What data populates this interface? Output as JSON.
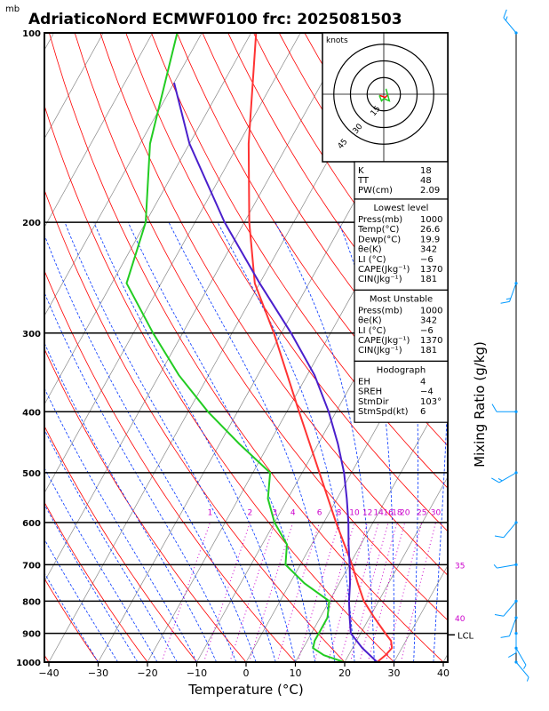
{
  "header": {
    "unit": "mb",
    "title": "AdriaticoNord ECMWF0100 frc: 2025081503"
  },
  "hodograph": {
    "unit": "knots",
    "ring_labels": [
      "15",
      "30",
      "45"
    ]
  },
  "indices": {
    "rows": [
      {
        "label": "K",
        "value": "18"
      },
      {
        "label": "TT",
        "value": "48"
      },
      {
        "label": "PW(cm)",
        "value": "2.09"
      }
    ]
  },
  "lowest_level": {
    "title": "Lowest level",
    "rows": [
      {
        "label": "Press(mb)",
        "value": "1000"
      },
      {
        "label": "Temp(°C)",
        "value": "26.6"
      },
      {
        "label": "Dewp(°C)",
        "value": "19.9"
      },
      {
        "label": "θe(K)",
        "value": "342"
      },
      {
        "label": "LI (°C)",
        "value": "−6"
      },
      {
        "label": "CAPE(Jkg⁻¹)",
        "value": "1370"
      },
      {
        "label": "CIN(Jkg⁻¹)",
        "value": "181"
      }
    ]
  },
  "most_unstable": {
    "title": "Most Unstable",
    "rows": [
      {
        "label": "Press(mb)",
        "value": "1000"
      },
      {
        "label": "θe(K)",
        "value": "342"
      },
      {
        "label": "LI (°C)",
        "value": "−6"
      },
      {
        "label": "CAPE(Jkg⁻¹)",
        "value": "1370"
      },
      {
        "label": "CIN(Jkg⁻¹)",
        "value": "181"
      }
    ]
  },
  "hodograph_box": {
    "title": "Hodograph",
    "rows": [
      {
        "label": "EH",
        "value": "4"
      },
      {
        "label": "SREH",
        "value": "−4"
      },
      {
        "label": "StmDir",
        "value": "103°"
      },
      {
        "label": "StmSpd(kt)",
        "value": "6"
      }
    ]
  },
  "mixing_ratio_title": "Mixing Ratio (g/kg)",
  "mixing_ratio_labels": [
    "1",
    "2",
    "3",
    "4",
    "6",
    "8",
    "10",
    "12",
    "14",
    "16",
    "18",
    "20",
    "25",
    "30"
  ],
  "lcl_label": "LCL",
  "colors": {
    "temperature": "#ff3333",
    "dewpoint": "#22cc22",
    "parcel": "#4a1fcc",
    "dry_adiabat": "#ff0000",
    "moist_adiabat": "#0033ff",
    "isotherm": "#888888",
    "mixing_ratio": "#cc00cc",
    "wind": "#0099ff"
  },
  "chart_data": {
    "type": "line",
    "subtype": "skew-T log-P",
    "xlabel": "Temperature (°C)",
    "ylabel": "",
    "x_ticks": [
      "−40",
      "−30",
      "−20",
      "−10",
      "0",
      "10",
      "20",
      "30",
      "40"
    ],
    "xlim": [
      -40,
      40
    ],
    "y_ticks": [
      "100",
      "200",
      "300",
      "400",
      "500",
      "600",
      "700",
      "800",
      "900",
      "1000"
    ],
    "ylim": [
      1000,
      100
    ],
    "y_scale": "log",
    "grid": true,
    "series": [
      {
        "key": "temperature",
        "points": [
          [
            1000,
            26.6
          ],
          [
            975,
            27.5
          ],
          [
            950,
            28.0
          ],
          [
            925,
            27.0
          ],
          [
            900,
            25.0
          ],
          [
            850,
            21.0
          ],
          [
            800,
            17.0
          ],
          [
            750,
            13.8
          ],
          [
            700,
            10.5
          ],
          [
            600,
            2.5
          ],
          [
            500,
            -6.5
          ],
          [
            400,
            -17.5
          ],
          [
            300,
            -31.5
          ],
          [
            250,
            -41.0
          ],
          [
            200,
            -49.0
          ],
          [
            150,
            -58.0
          ],
          [
            100,
            -69.0
          ]
        ]
      },
      {
        "key": "dewpoint",
        "points": [
          [
            1000,
            19.9
          ],
          [
            975,
            15.0
          ],
          [
            950,
            12.0
          ],
          [
            925,
            11.5
          ],
          [
            900,
            11.5
          ],
          [
            850,
            11.5
          ],
          [
            800,
            10.0
          ],
          [
            750,
            3.0
          ],
          [
            700,
            -3.0
          ],
          [
            650,
            -5.0
          ],
          [
            600,
            -10.0
          ],
          [
            550,
            -14.0
          ],
          [
            500,
            -16.5
          ],
          [
            450,
            -26.0
          ],
          [
            400,
            -36.0
          ],
          [
            350,
            -46.0
          ],
          [
            300,
            -56.0
          ],
          [
            250,
            -67.0
          ],
          [
            200,
            -70.0
          ],
          [
            150,
            -78.0
          ],
          [
            100,
            -85.0
          ]
        ]
      },
      {
        "key": "parcel",
        "points": [
          [
            1000,
            26.6
          ],
          [
            950,
            22.0
          ],
          [
            900,
            18.0
          ],
          [
            850,
            16.0
          ],
          [
            800,
            14.0
          ],
          [
            750,
            12.2
          ],
          [
            700,
            10.0
          ],
          [
            650,
            7.5
          ],
          [
            600,
            5.0
          ],
          [
            550,
            2.0
          ],
          [
            500,
            -1.5
          ],
          [
            450,
            -6.0
          ],
          [
            400,
            -11.5
          ],
          [
            350,
            -18.5
          ],
          [
            300,
            -28.0
          ],
          [
            250,
            -40.0
          ],
          [
            200,
            -54.0
          ],
          [
            150,
            -70.0
          ],
          [
            120,
            -80.0
          ]
        ]
      }
    ],
    "lcl_pressure": 905,
    "mixing_ratio_values": [
      1,
      2,
      3,
      4,
      6,
      8,
      10,
      12,
      14,
      16,
      18,
      20,
      25,
      30
    ],
    "wind_barbs": [
      {
        "p": 100,
        "dir": 320,
        "spd": 15
      },
      {
        "p": 250,
        "dir": 200,
        "spd": 15
      },
      {
        "p": 400,
        "dir": 270,
        "spd": 10
      },
      {
        "p": 500,
        "dir": 240,
        "spd": 15
      },
      {
        "p": 600,
        "dir": 220,
        "spd": 10
      },
      {
        "p": 700,
        "dir": 260,
        "spd": 5
      },
      {
        "p": 800,
        "dir": 220,
        "spd": 10
      },
      {
        "p": 850,
        "dir": 200,
        "spd": 10
      },
      {
        "p": 900,
        "dir": 180,
        "spd": 10
      },
      {
        "p": 950,
        "dir": 150,
        "spd": 5
      },
      {
        "p": 1000,
        "dir": 140,
        "spd": 5
      }
    ],
    "hodograph_points": [
      [
        3,
        -1
      ],
      [
        1,
        -3
      ],
      [
        -1,
        -2
      ],
      [
        -4,
        -1
      ],
      [
        -2,
        -6
      ],
      [
        0,
        -4
      ],
      [
        5,
        -6
      ],
      [
        2,
        5
      ]
    ]
  }
}
